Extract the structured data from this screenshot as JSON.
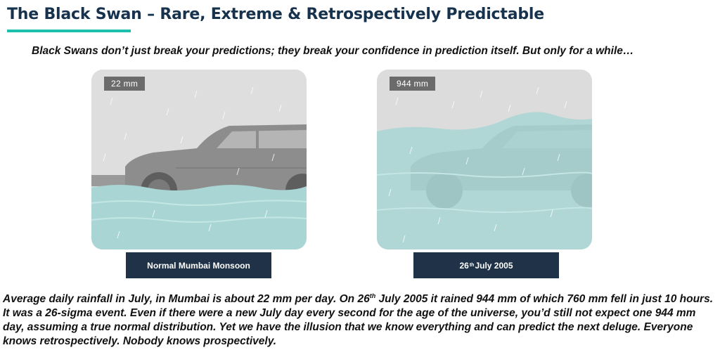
{
  "title": "The Black Swan – Rare, Extreme & Retrospectively Predictable",
  "subtitle": "Black Swans don’t just break your predictions; they break your confidence in prediction itself. But only for a while…",
  "panels": [
    {
      "tag": "22 mm",
      "caption": "Normal Mumbai Monsoon"
    },
    {
      "tag": "944 mm",
      "caption_pre": "26",
      "caption_sup": "th",
      "caption_post": " July 2005"
    }
  ],
  "body": {
    "part1": "Average daily rainfall in July, in Mumbai is about 22 mm per day. On 26",
    "sup": "th",
    "part2": " July 2005 it rained 944 mm of which 760 mm fell in just 10 hours. It was a 26-sigma event. Even if there were a new July day every second for the age of the universe, you’d still not expect one 944 mm day, assuming a true normal distribution. Yet we have the illusion that we know everything and can predict the next deluge. Everyone knows retrospectively. Nobody knows prospectively."
  },
  "colors": {
    "title": "#17324d",
    "accent": "#1fbfae",
    "caption_bg": "#1f3247",
    "water": "#a9d6d4",
    "car": "#8f8f8f",
    "sky": "#dcdcdc"
  }
}
